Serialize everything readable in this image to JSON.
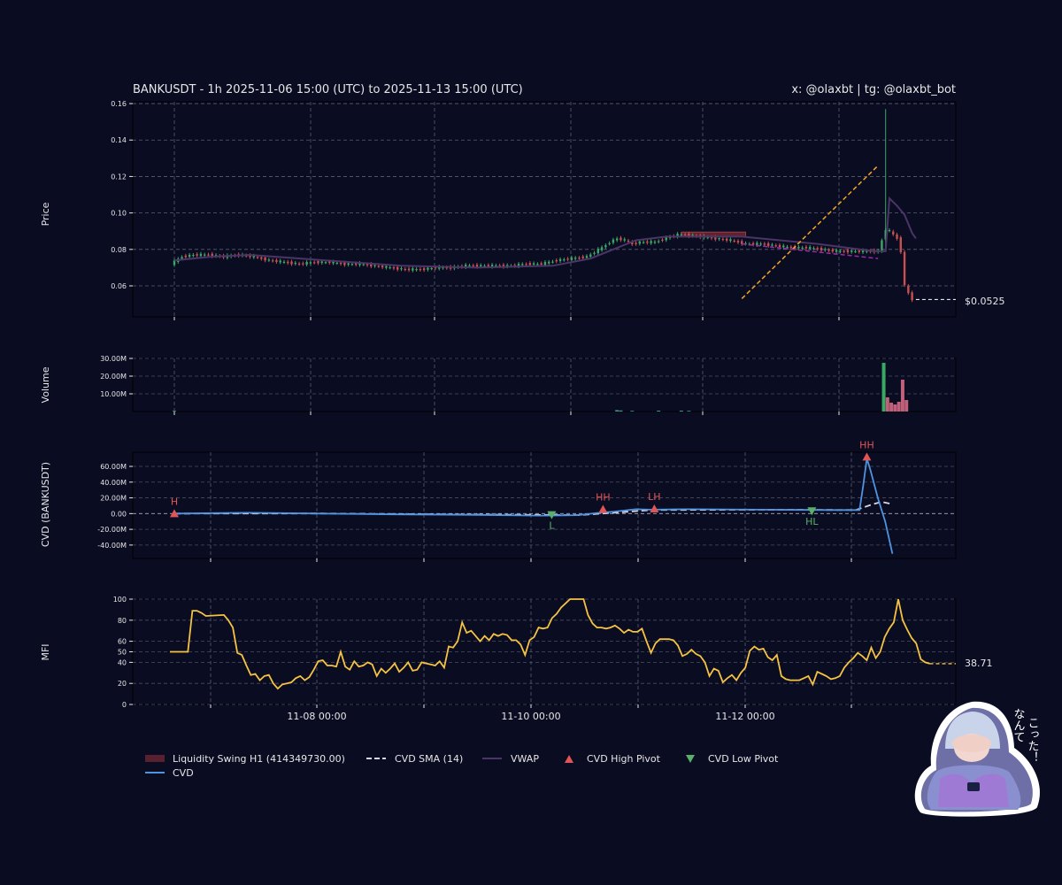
{
  "header": {
    "title": "BANKUSDT - 1h 2025-11-06 15:00 (UTC) to 2025-11-13 15:00 (UTC)",
    "credit": "x: @olaxbt | tg: @olaxbt_bot"
  },
  "colors": {
    "background": "#0a0c22",
    "up": "#3aa864",
    "down": "#c8504f",
    "vwap": "#4a3566",
    "cvd": "#4f94e0",
    "cvd_sma": "#d8d8e8",
    "mfi": "#f5c243",
    "trendline": "#f5a623",
    "high_pivot": "#e05555",
    "low_pivot": "#5ab06b",
    "liquidity": "#7a2a36"
  },
  "chart_data": [
    {
      "id": "price",
      "type": "candlestick",
      "ylabel": "Price",
      "ylim": [
        0.043,
        0.161
      ],
      "yticks": [
        0.06,
        0.08,
        0.1,
        0.12,
        0.14,
        0.16
      ],
      "ytick_labels": [
        "0.06",
        "0.08",
        "0.10",
        "0.12",
        "0.14",
        "0.16"
      ],
      "x_start": "2025-11-06 15:00",
      "last_price_label": "$0.0525",
      "last_price": 0.0525,
      "series_close": [
        [
          0,
          0.072
        ],
        [
          3,
          0.076
        ],
        [
          6,
          0.077
        ],
        [
          10,
          0.077
        ],
        [
          14,
          0.076
        ],
        [
          18,
          0.077
        ],
        [
          22,
          0.076
        ],
        [
          26,
          0.074
        ],
        [
          30,
          0.073
        ],
        [
          34,
          0.072
        ],
        [
          38,
          0.073
        ],
        [
          42,
          0.073
        ],
        [
          46,
          0.072
        ],
        [
          50,
          0.072
        ],
        [
          54,
          0.071
        ],
        [
          58,
          0.07
        ],
        [
          62,
          0.069
        ],
        [
          66,
          0.069
        ],
        [
          70,
          0.07
        ],
        [
          74,
          0.07
        ],
        [
          78,
          0.071
        ],
        [
          82,
          0.071
        ],
        [
          86,
          0.071
        ],
        [
          90,
          0.071
        ],
        [
          94,
          0.072
        ],
        [
          98,
          0.072
        ],
        [
          102,
          0.074
        ],
        [
          106,
          0.075
        ],
        [
          110,
          0.076
        ],
        [
          114,
          0.081
        ],
        [
          116,
          0.084
        ],
        [
          118,
          0.086
        ],
        [
          120,
          0.085
        ],
        [
          122,
          0.083
        ],
        [
          124,
          0.084
        ],
        [
          128,
          0.084
        ],
        [
          132,
          0.087
        ],
        [
          134,
          0.088
        ],
        [
          136,
          0.088
        ],
        [
          140,
          0.087
        ],
        [
          144,
          0.086
        ],
        [
          148,
          0.085
        ],
        [
          152,
          0.083
        ],
        [
          156,
          0.083
        ],
        [
          160,
          0.082
        ],
        [
          164,
          0.081
        ],
        [
          168,
          0.081
        ],
        [
          172,
          0.08
        ],
        [
          176,
          0.079
        ],
        [
          180,
          0.079
        ],
        [
          184,
          0.079
        ],
        [
          187,
          0.079
        ],
        [
          189,
          0.091
        ],
        [
          190,
          0.09
        ],
        [
          191,
          0.088
        ],
        [
          192,
          0.086
        ],
        [
          193,
          0.079
        ],
        [
          194,
          0.06
        ],
        [
          195,
          0.056
        ],
        [
          196,
          0.0525
        ]
      ],
      "wick_high": 0.157,
      "wick_high_hour": 188,
      "vwap": [
        [
          0,
          0.074
        ],
        [
          10,
          0.076
        ],
        [
          20,
          0.077
        ],
        [
          40,
          0.074
        ],
        [
          60,
          0.071
        ],
        [
          80,
          0.07
        ],
        [
          100,
          0.071
        ],
        [
          110,
          0.075
        ],
        [
          116,
          0.08
        ],
        [
          122,
          0.085
        ],
        [
          130,
          0.087
        ],
        [
          150,
          0.087
        ],
        [
          170,
          0.083
        ],
        [
          185,
          0.079
        ],
        [
          188,
          0.079
        ],
        [
          189,
          0.108
        ],
        [
          191,
          0.104
        ],
        [
          193,
          0.099
        ],
        [
          195,
          0.089
        ],
        [
          196,
          0.086
        ]
      ],
      "liquidity_swing": {
        "label": "Liquidity Swing H1 (414349730.00)",
        "from_hour": 134,
        "to_hour": 151,
        "top": 0.0895,
        "bottom": 0.087
      },
      "trendline": {
        "from": [
          150,
          0.053
        ],
        "to": [
          186,
          0.126
        ]
      },
      "support_line": {
        "from": [
          150,
          0.083
        ],
        "to": [
          186,
          0.075
        ]
      }
    },
    {
      "id": "volume",
      "type": "bar",
      "ylabel": "Volume",
      "ylim": [
        0,
        30000000
      ],
      "yticks": [
        10000000,
        20000000,
        30000000
      ],
      "ytick_labels": [
        "10.00M",
        "20.00M",
        "30.00M"
      ],
      "bars": [
        [
          187.5,
          27500000,
          "up"
        ],
        [
          188.5,
          8000000,
          "down"
        ],
        [
          189.5,
          5000000,
          "down"
        ],
        [
          190.5,
          4000000,
          "down"
        ],
        [
          191.5,
          5500000,
          "down"
        ],
        [
          192.5,
          18000000,
          "down"
        ],
        [
          193.5,
          6500000,
          "down"
        ]
      ],
      "small_bars": [
        [
          0,
          400000
        ],
        [
          117,
          800000
        ],
        [
          118,
          600000
        ],
        [
          121,
          400000
        ],
        [
          128,
          500000
        ],
        [
          134,
          500000
        ],
        [
          136,
          400000
        ]
      ]
    },
    {
      "id": "cvd",
      "type": "line",
      "ylabel": "CVD (BANKUSDT)",
      "ylim": [
        -57000000,
        78000000
      ],
      "yticks": [
        -40000000,
        -20000000,
        0,
        20000000,
        40000000,
        60000000
      ],
      "ytick_labels": [
        "-40.00M",
        "-20.00M",
        "0.00",
        "20.00M",
        "40.00M",
        "60.00M"
      ],
      "cvd": [
        [
          0,
          0
        ],
        [
          20,
          1000000
        ],
        [
          40,
          0
        ],
        [
          60,
          -1000000
        ],
        [
          80,
          -1500000
        ],
        [
          100,
          -2500000
        ],
        [
          110,
          -2000000
        ],
        [
          116,
          1000000
        ],
        [
          120,
          2500000
        ],
        [
          126,
          5500000
        ],
        [
          130,
          5000000
        ],
        [
          140,
          5500000
        ],
        [
          160,
          5000000
        ],
        [
          180,
          4500000
        ],
        [
          187,
          4500000
        ],
        [
          188,
          35000000
        ],
        [
          189,
          70000000
        ],
        [
          190,
          55000000
        ],
        [
          192,
          20000000
        ],
        [
          194,
          -10000000
        ],
        [
          196,
          -51000000
        ]
      ],
      "cvd_sma": [
        [
          0,
          0
        ],
        [
          40,
          200000
        ],
        [
          80,
          -1200000
        ],
        [
          110,
          -2000000
        ],
        [
          120,
          1000000
        ],
        [
          130,
          4500000
        ],
        [
          160,
          5000000
        ],
        [
          186,
          4500000
        ],
        [
          190,
          11000000
        ],
        [
          193,
          15000000
        ],
        [
          196,
          12000000
        ]
      ],
      "pivots": [
        {
          "hour": 0,
          "value": 0,
          "label": "H",
          "kind": "high"
        },
        {
          "hour": 103,
          "value": -1500000,
          "label": "L",
          "kind": "low"
        },
        {
          "hour": 117,
          "value": 5500000,
          "label": "HH",
          "kind": "high"
        },
        {
          "hour": 131,
          "value": 6000000,
          "label": "LH",
          "kind": "high"
        },
        {
          "hour": 174,
          "value": 3500000,
          "label": "HL",
          "kind": "low"
        },
        {
          "hour": 189,
          "value": 72000000,
          "label": "HH",
          "kind": "high"
        }
      ]
    },
    {
      "id": "mfi",
      "type": "line",
      "ylabel": "MFI",
      "ylim": [
        0,
        100
      ],
      "yticks": [
        0,
        20,
        40,
        50,
        60,
        80,
        100
      ],
      "ytick_labels": [
        "0",
        "20",
        "40",
        "50",
        "60",
        "80",
        "100"
      ],
      "last_value_label": "38.71",
      "last_value": 38.71,
      "x_tick_labels": [
        {
          "label": "11-08 00:00",
          "hour": 33
        },
        {
          "label": "11-10 00:00",
          "hour": 81
        },
        {
          "label": "11-12 00:00",
          "hour": 129
        }
      ],
      "mfi": [
        [
          0,
          50
        ],
        [
          4,
          50
        ],
        [
          5,
          89
        ],
        [
          6,
          89
        ],
        [
          7,
          87
        ],
        [
          8,
          84
        ],
        [
          12,
          85
        ],
        [
          13,
          80
        ],
        [
          14,
          73
        ],
        [
          15,
          49
        ],
        [
          16,
          47
        ],
        [
          17,
          37
        ],
        [
          18,
          28
        ],
        [
          19,
          29
        ],
        [
          20,
          23
        ],
        [
          21,
          27
        ],
        [
          22,
          28
        ],
        [
          23,
          20
        ],
        [
          24,
          15
        ],
        [
          25,
          19
        ],
        [
          26,
          20
        ],
        [
          27,
          21
        ],
        [
          28,
          25
        ],
        [
          29,
          27
        ],
        [
          30,
          23
        ],
        [
          31,
          26
        ],
        [
          32,
          33
        ],
        [
          33,
          41
        ],
        [
          34,
          42
        ],
        [
          35,
          37
        ],
        [
          36,
          37
        ],
        [
          37,
          36
        ],
        [
          38,
          50
        ],
        [
          39,
          36
        ],
        [
          40,
          33
        ],
        [
          41,
          41
        ],
        [
          42,
          36
        ],
        [
          43,
          37
        ],
        [
          44,
          40
        ],
        [
          45,
          38
        ],
        [
          46,
          27
        ],
        [
          47,
          34
        ],
        [
          48,
          30
        ],
        [
          49,
          34
        ],
        [
          50,
          39
        ],
        [
          51,
          31
        ],
        [
          52,
          35
        ],
        [
          53,
          40
        ],
        [
          54,
          32
        ],
        [
          55,
          33
        ],
        [
          56,
          40
        ],
        [
          57,
          39
        ],
        [
          58,
          38
        ],
        [
          59,
          37
        ],
        [
          60,
          41
        ],
        [
          61,
          35
        ],
        [
          62,
          55
        ],
        [
          63,
          54
        ],
        [
          64,
          60
        ],
        [
          65,
          78
        ],
        [
          66,
          68
        ],
        [
          67,
          70
        ],
        [
          68,
          65
        ],
        [
          69,
          60
        ],
        [
          70,
          65
        ],
        [
          71,
          61
        ],
        [
          72,
          67
        ],
        [
          73,
          65
        ],
        [
          74,
          67
        ],
        [
          75,
          66
        ],
        [
          76,
          61
        ],
        [
          77,
          61
        ],
        [
          78,
          57
        ],
        [
          79,
          47
        ],
        [
          80,
          61
        ],
        [
          81,
          64
        ],
        [
          82,
          73
        ],
        [
          83,
          72
        ],
        [
          84,
          73
        ],
        [
          85,
          82
        ],
        [
          86,
          86
        ],
        [
          87,
          92
        ],
        [
          88,
          96
        ],
        [
          89,
          100
        ],
        [
          92,
          100
        ],
        [
          93,
          85
        ],
        [
          94,
          77
        ],
        [
          95,
          73
        ],
        [
          96,
          73
        ],
        [
          97,
          72
        ],
        [
          98,
          73
        ],
        [
          99,
          75
        ],
        [
          100,
          72
        ],
        [
          101,
          68
        ],
        [
          102,
          71
        ],
        [
          103,
          69
        ],
        [
          104,
          69
        ],
        [
          105,
          72
        ],
        [
          106,
          60
        ],
        [
          107,
          49
        ],
        [
          108,
          58
        ],
        [
          109,
          62
        ],
        [
          110,
          62
        ],
        [
          111,
          62
        ],
        [
          112,
          61
        ],
        [
          113,
          56
        ],
        [
          114,
          46
        ],
        [
          115,
          48
        ],
        [
          116,
          52
        ],
        [
          117,
          48
        ],
        [
          118,
          46
        ],
        [
          119,
          40
        ],
        [
          120,
          27
        ],
        [
          121,
          34
        ],
        [
          122,
          32
        ],
        [
          123,
          21
        ],
        [
          124,
          25
        ],
        [
          125,
          28
        ],
        [
          126,
          23
        ],
        [
          127,
          30
        ],
        [
          128,
          35
        ],
        [
          129,
          51
        ],
        [
          130,
          55
        ],
        [
          131,
          52
        ],
        [
          132,
          53
        ],
        [
          133,
          45
        ],
        [
          134,
          42
        ],
        [
          135,
          47
        ],
        [
          136,
          27
        ],
        [
          137,
          24
        ],
        [
          138,
          23
        ],
        [
          139,
          23
        ],
        [
          140,
          23
        ],
        [
          141,
          25
        ],
        [
          142,
          27
        ],
        [
          143,
          19
        ],
        [
          144,
          31
        ],
        [
          145,
          29
        ],
        [
          146,
          27
        ],
        [
          147,
          24
        ],
        [
          148,
          25
        ],
        [
          149,
          27
        ],
        [
          150,
          35
        ],
        [
          151,
          40
        ],
        [
          152,
          44
        ],
        [
          153,
          49
        ],
        [
          154,
          46
        ],
        [
          155,
          42
        ],
        [
          156,
          54
        ],
        [
          157,
          44
        ],
        [
          158,
          50
        ],
        [
          159,
          64
        ],
        [
          160,
          72
        ],
        [
          161,
          78
        ],
        [
          162,
          100
        ],
        [
          163,
          80
        ],
        [
          164,
          71
        ],
        [
          165,
          63
        ],
        [
          166,
          58
        ],
        [
          167,
          43
        ],
        [
          168,
          40
        ],
        [
          169,
          38.71
        ]
      ]
    }
  ],
  "legend": [
    {
      "label": "Liquidity Swing H1 (414349730.00)",
      "kind": "patch"
    },
    {
      "label": "CVD SMA (14)",
      "kind": "dashed"
    },
    {
      "label": "VWAP",
      "kind": "line"
    },
    {
      "label": "CVD High Pivot",
      "kind": "triangle-up"
    },
    {
      "label": "CVD Low Pivot",
      "kind": "triangle-down"
    },
    {
      "label": "CVD",
      "kind": "line"
    }
  ],
  "mascot": {
    "caption": "なんてこった！",
    "caption_line1": "なんて",
    "caption_line2": "こった！"
  }
}
